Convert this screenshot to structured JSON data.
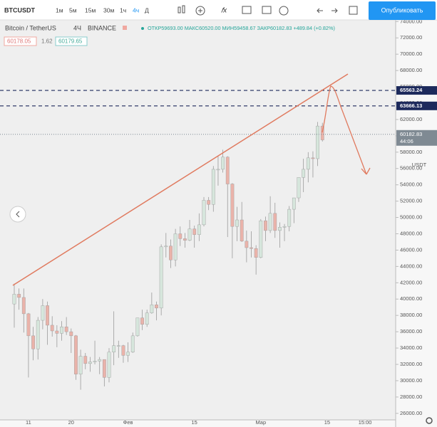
{
  "toolbar": {
    "symbol": "BTCUSDT",
    "intervals": [
      "1м",
      "5м",
      "15м",
      "30м",
      "1ч",
      "4ч",
      "Д"
    ],
    "publish": "Опубликовать"
  },
  "legend": {
    "name": "Bitcoin / TetherUS",
    "interval": "4Ч",
    "exchange": "BINANCE",
    "ohlc": "ОТКР59693.00 МАКС60520.00 МИН59458.67 ЗАКР60182.83 +489.84 (+0.82%)",
    "values": [
      "60178.05",
      "1.62",
      "60179.65"
    ]
  },
  "chart_data": {
    "type": "candlestick",
    "unit": "USDT",
    "categories": [
      null,
      null,
      null,
      "11",
      null,
      null,
      null,
      null,
      null,
      null,
      null,
      null,
      "20",
      null,
      null,
      null,
      null,
      null,
      null,
      null,
      null,
      null,
      null,
      null,
      "Фев",
      null,
      null,
      null,
      null,
      null,
      null,
      null,
      null,
      null,
      null,
      null,
      null,
      null,
      "15",
      null,
      null,
      null,
      null,
      null,
      null,
      null,
      null,
      null,
      null,
      null,
      null,
      null,
      "Мар",
      null,
      null,
      null,
      null,
      null,
      null,
      null,
      null,
      null,
      null,
      null,
      null,
      null,
      "15",
      null,
      null,
      null,
      null,
      null,
      null,
      null,
      "15:00"
    ],
    "open": [
      39400,
      40600,
      40200,
      38200,
      35500,
      33900,
      37400,
      39200,
      36800,
      36100,
      35800,
      36600,
      36000,
      35500,
      30800,
      33000,
      32100,
      32300,
      32400,
      32600,
      30400,
      33500,
      34300,
      34300,
      33100,
      33500,
      35500,
      37700,
      36900,
      38300,
      39300,
      38900,
      46400,
      46500,
      44800,
      48000,
      47400,
      47200,
      48600,
      47900,
      49100,
      52100,
      51600,
      55900,
      55900,
      57400,
      54100,
      48900,
      49700,
      47100,
      46300,
      46200,
      45100,
      49600,
      48400,
      50500,
      48400,
      48800,
      48900,
      51000,
      52400,
      54900,
      55900,
      57300,
      57200,
      61200,
      null,
      null,
      null,
      null,
      null,
      null,
      null,
      null,
      null
    ],
    "high": [
      41900,
      41300,
      41300,
      38300,
      36600,
      37800,
      40000,
      39700,
      37900,
      36800,
      37300,
      37800,
      36400,
      35600,
      33800,
      33400,
      32900,
      34900,
      32900,
      32600,
      34000,
      38500,
      34900,
      34400,
      34700,
      35900,
      37700,
      38700,
      38700,
      40800,
      39700,
      46700,
      48100,
      47300,
      48600,
      48900,
      48100,
      49700,
      49000,
      50500,
      52500,
      52500,
      56300,
      57500,
      58300,
      57500,
      54200,
      51300,
      51900,
      48400,
      48300,
      46600,
      49800,
      50100,
      52600,
      51800,
      49400,
      49200,
      51400,
      52400,
      54900,
      57200,
      58000,
      58100,
      61700,
      61600,
      null,
      null,
      null,
      null,
      null,
      null,
      null,
      null,
      null
    ],
    "low": [
      36500,
      38700,
      35900,
      30400,
      32500,
      32600,
      36300,
      34400,
      35400,
      34100,
      34900,
      35600,
      33400,
      30100,
      28900,
      31400,
      31100,
      32000,
      30800,
      29300,
      29800,
      31900,
      32800,
      32200,
      32300,
      33400,
      35400,
      36200,
      36600,
      38200,
      37400,
      38000,
      45100,
      43800,
      44000,
      46500,
      46300,
      47100,
      46300,
      47100,
      48900,
      50900,
      50700,
      53900,
      55500,
      47600,
      45000,
      47100,
      47000,
      44500,
      45100,
      43000,
      45000,
      47100,
      48100,
      47500,
      46300,
      47100,
      48300,
      49300,
      51900,
      53100,
      54300,
      54900,
      56300,
      59300,
      null,
      null,
      null,
      null,
      null,
      null,
      null,
      null,
      null
    ],
    "close": [
      40600,
      40200,
      38200,
      35500,
      33900,
      37400,
      39200,
      36800,
      36100,
      35800,
      36600,
      36000,
      35500,
      30800,
      33000,
      32100,
      32300,
      32400,
      32600,
      30400,
      33500,
      34300,
      34300,
      33100,
      33500,
      35500,
      37700,
      36900,
      38300,
      39300,
      38900,
      46400,
      46500,
      44800,
      48000,
      47400,
      47200,
      48600,
      47900,
      49100,
      52100,
      51600,
      55900,
      55900,
      57400,
      54100,
      48900,
      49700,
      47100,
      46300,
      46200,
      45100,
      49600,
      48400,
      50500,
      48400,
      48800,
      48900,
      51000,
      52400,
      54900,
      55900,
      57300,
      57200,
      61200,
      59500,
      null,
      null,
      null,
      null,
      null,
      null,
      null,
      null,
      null
    ],
    "up_color": "#d6e6dc",
    "down_color": "#eab3aa",
    "wick_color": "#9a9a9a",
    "ylim": [
      25200,
      74200
    ],
    "yticks": [
      {
        "value": 26000,
        "label": "26000.00"
      },
      {
        "value": 28000,
        "label": "28000.00"
      },
      {
        "value": 30000,
        "label": "30000.00"
      },
      {
        "value": 32000,
        "label": "32000.00"
      },
      {
        "value": 34000,
        "label": "34000.00"
      },
      {
        "value": 36000,
        "label": "36000.00"
      },
      {
        "value": 38000,
        "label": "38000.00"
      },
      {
        "value": 40000,
        "label": "40000.00"
      },
      {
        "value": 42000,
        "label": "42000.00"
      },
      {
        "value": 44000,
        "label": "44000.00"
      },
      {
        "value": 46000,
        "label": "46000.00"
      },
      {
        "value": 48000,
        "label": "48000.00"
      },
      {
        "value": 50000,
        "label": "50000.00"
      },
      {
        "value": 52000,
        "label": "52000.00"
      },
      {
        "value": 54000,
        "label": "54000.00"
      },
      {
        "value": 56000,
        "label": "56000.00"
      },
      {
        "value": 58000,
        "label": "58000.00"
      },
      {
        "value": 60000,
        "label": "60000.00"
      },
      {
        "value": 62000,
        "label": "62000.00"
      },
      {
        "value": 64000,
        "label": "64000.00"
      },
      {
        "value": 66000,
        "label": "66000.00"
      },
      {
        "value": 68000,
        "label": "68000.00"
      },
      {
        "value": 70000,
        "label": "70000.00"
      },
      {
        "value": 72000,
        "label": "72000.00"
      },
      {
        "value": 74000,
        "label": "74000.00"
      }
    ],
    "hlines": [
      {
        "value": 65563.24,
        "label": "65563.24",
        "color": "#1d2a5c"
      },
      {
        "value": 63666.13,
        "label": "63666.13",
        "color": "#1d2a5c"
      }
    ],
    "last_price": {
      "value": 60182.83,
      "label": "60182.83",
      "countdown": "44:06",
      "color": "#7f8a93"
    }
  }
}
